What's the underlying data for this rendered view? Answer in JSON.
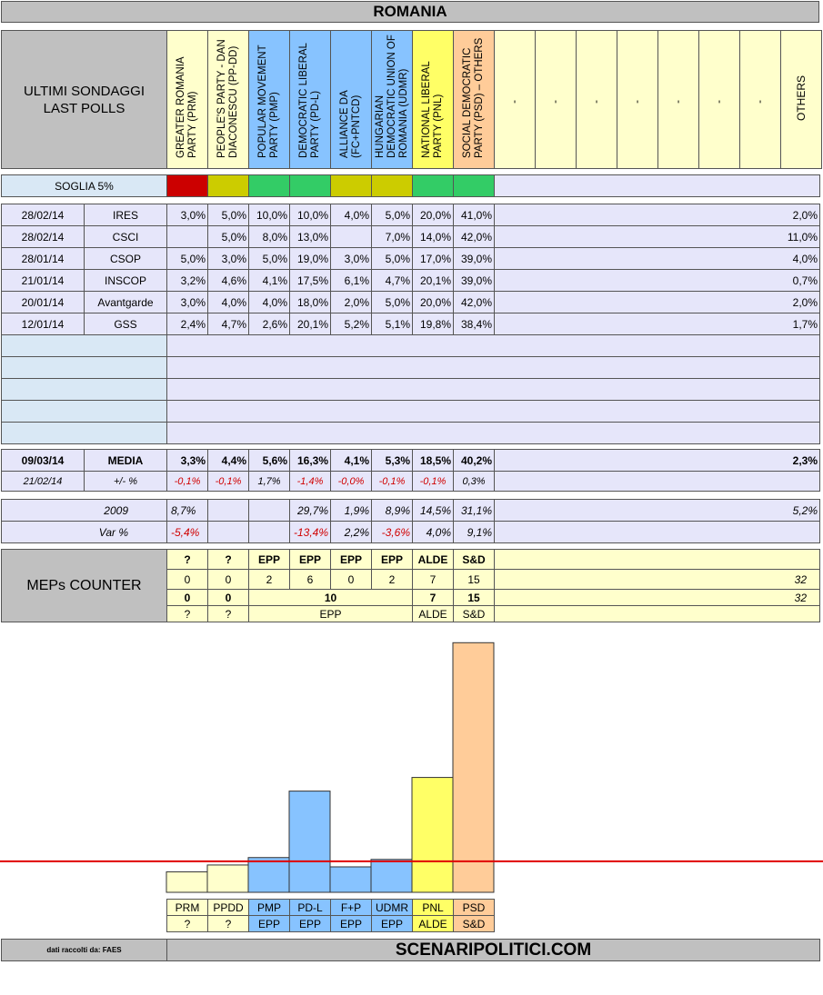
{
  "title": "ROMANIA",
  "header_label": [
    "ULTIMI SONDAGGI",
    "LAST POLLS"
  ],
  "parties": [
    {
      "name": "GREATER ROMANIA PARTY (PRM)",
      "abbr": "PRM",
      "color": "#ffffcc",
      "threshold": "#cc0000",
      "group": "?"
    },
    {
      "name": "PEOPLE'S PARTY - DAN DIACONESCU (PP-DD)",
      "abbr": "PPDD",
      "color": "#ffffcc",
      "threshold": "#cccc00",
      "group": "?"
    },
    {
      "name": "POPULAR MOVEMENT PARTY (PMP)",
      "abbr": "PMP",
      "color": "#87c3ff",
      "threshold": "#33cc66",
      "group": "EPP"
    },
    {
      "name": "DEMOCRATIC LIBERAL PARTY (PD-L)",
      "abbr": "PD-L",
      "color": "#87c3ff",
      "threshold": "#33cc66",
      "group": "EPP"
    },
    {
      "name": "ALLIANCE DA (FC+PNTCD)",
      "abbr": "F+P",
      "color": "#87c3ff",
      "threshold": "#cccc00",
      "group": "EPP"
    },
    {
      "name": "HUNGARIAN DEMOCRATIC UNION OF ROMANIA (UDMR)",
      "abbr": "UDMR",
      "color": "#87c3ff",
      "threshold": "#cccc00",
      "group": "EPP"
    },
    {
      "name": "NATIONAL LIBERAL PARTY (PNL)",
      "abbr": "PNL",
      "color": "#ffff66",
      "threshold": "#33cc66",
      "group": "ALDE"
    },
    {
      "name": "SOCIAL DEMOCRATIC PARTY (PSD) – OTHERS",
      "abbr": "PSD",
      "color": "#ffcc99",
      "threshold": "#33cc66",
      "group": "S&D"
    }
  ],
  "empty_cols": [
    "-",
    "-",
    "-",
    "-",
    "-",
    "-",
    "-"
  ],
  "others_label": "OTHERS",
  "threshold_label": "SOGLIA 5%",
  "polls": [
    {
      "date": "28/02/14",
      "institute": "IRES",
      "values": [
        "3,0%",
        "5,0%",
        "10,0%",
        "10,0%",
        "4,0%",
        "5,0%",
        "20,0%",
        "41,0%"
      ],
      "others": "2,0%"
    },
    {
      "date": "28/02/14",
      "institute": "CSCI",
      "values": [
        "",
        "5,0%",
        "8,0%",
        "13,0%",
        "",
        "7,0%",
        "14,0%",
        "42,0%"
      ],
      "others": "11,0%"
    },
    {
      "date": "28/01/14",
      "institute": "CSOP",
      "values": [
        "5,0%",
        "3,0%",
        "5,0%",
        "19,0%",
        "3,0%",
        "5,0%",
        "17,0%",
        "39,0%"
      ],
      "others": "4,0%"
    },
    {
      "date": "21/01/14",
      "institute": "INSCOP",
      "values": [
        "3,2%",
        "4,6%",
        "4,1%",
        "17,5%",
        "6,1%",
        "4,7%",
        "20,1%",
        "39,0%"
      ],
      "others": "0,7%"
    },
    {
      "date": "20/01/14",
      "institute": "Avantgarde",
      "values": [
        "3,0%",
        "4,0%",
        "4,0%",
        "18,0%",
        "2,0%",
        "5,0%",
        "20,0%",
        "42,0%"
      ],
      "others": "2,0%"
    },
    {
      "date": "12/01/14",
      "institute": "GSS",
      "values": [
        "2,4%",
        "4,7%",
        "2,6%",
        "20,1%",
        "5,2%",
        "5,1%",
        "19,8%",
        "38,4%"
      ],
      "others": "1,7%"
    }
  ],
  "media": {
    "date": "09/03/14",
    "label": "MEDIA",
    "values": [
      "3,3%",
      "4,4%",
      "5,6%",
      "16,3%",
      "4,1%",
      "5,3%",
      "18,5%",
      "40,2%"
    ],
    "others": "2,3%"
  },
  "delta": {
    "date": "21/02/14",
    "label": "+/- %",
    "values": [
      "-0,1%",
      "-0,1%",
      "1,7%",
      "-1,4%",
      "-0,0%",
      "-0,1%",
      "-0,1%",
      "0,3%"
    ]
  },
  "election": {
    "label": "2009",
    "values": [
      "8,7%",
      "",
      "",
      "29,7%",
      "1,9%",
      "8,9%",
      "14,5%",
      "31,1%"
    ],
    "others": "5,2%"
  },
  "variation": {
    "label": "Var %",
    "values": [
      "-5,4%",
      "",
      "",
      "-13,4%",
      "2,2%",
      "-3,6%",
      "4,0%",
      "9,1%"
    ]
  },
  "meps": {
    "label": "MEPs COUNTER",
    "groups": [
      "?",
      "?",
      "EPP",
      "EPP",
      "EPP",
      "EPP",
      "ALDE",
      "S&D"
    ],
    "seats": [
      "0",
      "0",
      "2",
      "6",
      "0",
      "2",
      "7",
      "15"
    ],
    "total": "32",
    "agg_values": [
      "0",
      "0",
      "10",
      "7",
      "15"
    ],
    "agg_groups": [
      "?",
      "?",
      "EPP",
      "ALDE",
      "S&D"
    ]
  },
  "chart_data": {
    "type": "bar",
    "categories": [
      "PRM",
      "PPDD",
      "PMP",
      "PD-L",
      "F+P",
      "UDMR",
      "PNL",
      "PSD"
    ],
    "values": [
      3.3,
      4.4,
      5.6,
      16.3,
      4.1,
      5.3,
      18.5,
      40.2
    ],
    "groups": [
      "?",
      "?",
      "EPP",
      "EPP",
      "EPP",
      "EPP",
      "ALDE",
      "S&D"
    ],
    "threshold": 5,
    "threshold_color": "#e00000",
    "ylim": [
      0,
      42
    ]
  },
  "footer": {
    "source": "dati raccolti da: FAES",
    "site": "SCENARIPOLITICI.COM"
  }
}
